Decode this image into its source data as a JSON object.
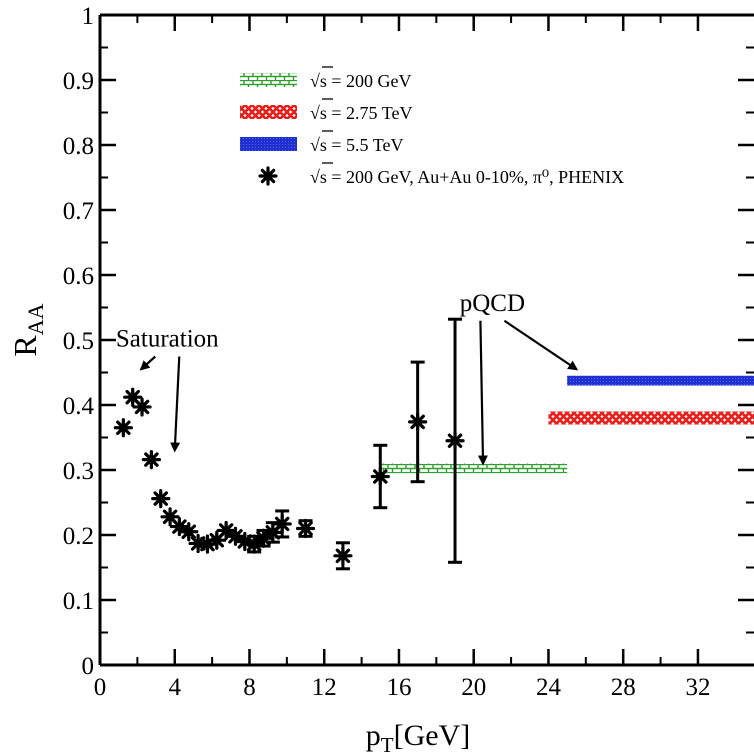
{
  "chart_data": {
    "type": "scatter",
    "xlabel": "p",
    "xlabel_sub": "T",
    "xlabel_unit": "[GeV]",
    "ylabel": "R",
    "ylabel_sub": "AA",
    "xlim": [
      0,
      35
    ],
    "ylim": [
      0,
      1
    ],
    "xticks": [
      "0",
      "4",
      "8",
      "12",
      "16",
      "20",
      "24",
      "28",
      "32"
    ],
    "yticks": [
      "0",
      "0.1",
      "0.2",
      "0.3",
      "0.4",
      "0.5",
      "0.6",
      "0.7",
      "0.8",
      "0.9",
      "1"
    ],
    "legend_position": "top-right",
    "legend": [
      {
        "label": "√s = 200 GeV",
        "style": "band-brick",
        "color": "#2ca02c"
      },
      {
        "label": "√s = 2.75 TeV",
        "style": "band-crosshatch",
        "color": "#e8201c"
      },
      {
        "label": "√s = 5.5 TeV",
        "style": "band-solid",
        "color": "#1f2fd0"
      },
      {
        "label": "√s = 200 GeV, Au+Au 0-10%, π⁰, PHENIX",
        "style": "star-marker",
        "color": "#000000"
      }
    ],
    "bands": [
      {
        "name": "√s = 200 GeV",
        "x": [
          15,
          25
        ],
        "y": [
          0.295,
          0.31
        ],
        "color": "#2ca02c",
        "pattern": "brick"
      },
      {
        "name": "√s = 2.75 TeV",
        "x": [
          24,
          35
        ],
        "y": [
          0.37,
          0.39
        ],
        "color": "#e8201c",
        "pattern": "crosshatch"
      },
      {
        "name": "√s = 5.5 TeV",
        "x": [
          25,
          35
        ],
        "y": [
          0.43,
          0.445
        ],
        "color": "#1f2fd0",
        "pattern": "solid"
      }
    ],
    "series": [
      {
        "name": "√s = 200 GeV, Au+Au 0-10%, π⁰, PHENIX",
        "points": [
          {
            "x": 1.25,
            "y": 0.365,
            "err": 0.01
          },
          {
            "x": 1.75,
            "y": 0.412,
            "err": 0.01
          },
          {
            "x": 2.25,
            "y": 0.397,
            "err": 0.01
          },
          {
            "x": 2.75,
            "y": 0.316,
            "err": 0.01
          },
          {
            "x": 3.25,
            "y": 0.256,
            "err": 0.01
          },
          {
            "x": 3.75,
            "y": 0.228,
            "err": 0.01
          },
          {
            "x": 4.25,
            "y": 0.213,
            "err": 0.01
          },
          {
            "x": 4.75,
            "y": 0.205,
            "err": 0.01
          },
          {
            "x": 5.25,
            "y": 0.187,
            "err": 0.01
          },
          {
            "x": 5.75,
            "y": 0.186,
            "err": 0.01
          },
          {
            "x": 6.25,
            "y": 0.192,
            "err": 0.01
          },
          {
            "x": 6.75,
            "y": 0.207,
            "err": 0.01
          },
          {
            "x": 7.25,
            "y": 0.198,
            "err": 0.01
          },
          {
            "x": 7.75,
            "y": 0.19,
            "err": 0.01
          },
          {
            "x": 8.25,
            "y": 0.186,
            "err": 0.012
          },
          {
            "x": 8.75,
            "y": 0.195,
            "err": 0.012
          },
          {
            "x": 9.25,
            "y": 0.204,
            "err": 0.015
          },
          {
            "x": 9.75,
            "y": 0.217,
            "err": 0.02
          },
          {
            "x": 11,
            "y": 0.21,
            "err": 0.012
          },
          {
            "x": 13,
            "y": 0.168,
            "err": 0.02
          },
          {
            "x": 15,
            "y": 0.29,
            "err": 0.048
          },
          {
            "x": 17,
            "y": 0.374,
            "err": 0.092
          },
          {
            "x": 19,
            "y": 0.345,
            "err": 0.187
          }
        ]
      }
    ],
    "annotations": [
      {
        "text": "Saturation",
        "x": 3.6,
        "y": 0.49,
        "arrows_to": [
          [
            2.2,
            0.455
          ],
          [
            4.0,
            0.33
          ]
        ]
      },
      {
        "text": "pQCD",
        "x": 21.0,
        "y": 0.545,
        "arrows_to": [
          [
            20.5,
            0.31
          ],
          [
            25.5,
            0.455
          ]
        ]
      }
    ]
  }
}
